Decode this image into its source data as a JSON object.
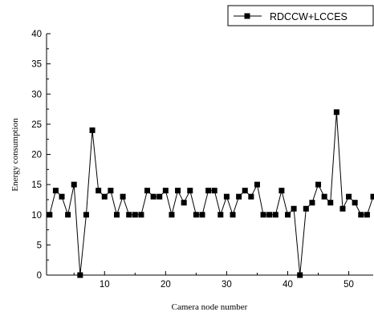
{
  "chart_data": {
    "type": "line",
    "xlabel": "Camera node number",
    "ylabel": "Energy consumption",
    "xlim": [
      0.5,
      54
    ],
    "ylim": [
      0,
      40
    ],
    "x_ticks": [
      10,
      20,
      30,
      40,
      50
    ],
    "y_ticks": [
      0,
      5,
      10,
      15,
      20,
      25,
      30,
      35,
      40
    ],
    "grid": false,
    "legend_position": "top-right",
    "series": [
      {
        "name": "RDCCW+LCCES",
        "color": "#000000",
        "marker": "square",
        "x": [
          1,
          2,
          3,
          4,
          5,
          6,
          7,
          8,
          9,
          10,
          11,
          12,
          13,
          14,
          15,
          16,
          17,
          18,
          19,
          20,
          21,
          22,
          23,
          24,
          25,
          26,
          27,
          28,
          29,
          30,
          31,
          32,
          33,
          34,
          35,
          36,
          37,
          38,
          39,
          40,
          41,
          42,
          43,
          44,
          45,
          46,
          47,
          48,
          49,
          50,
          51,
          52,
          53,
          54
        ],
        "values": [
          10,
          14,
          13,
          10,
          15,
          0,
          10,
          24,
          14,
          13,
          14,
          10,
          13,
          10,
          10,
          10,
          14,
          13,
          13,
          14,
          10,
          14,
          12,
          14,
          10,
          10,
          14,
          14,
          10,
          13,
          10,
          13,
          14,
          13,
          15,
          10,
          10,
          10,
          14,
          10,
          11,
          0,
          11,
          12,
          15,
          13,
          12,
          27,
          11,
          13,
          12,
          10,
          10,
          13
        ]
      }
    ]
  }
}
